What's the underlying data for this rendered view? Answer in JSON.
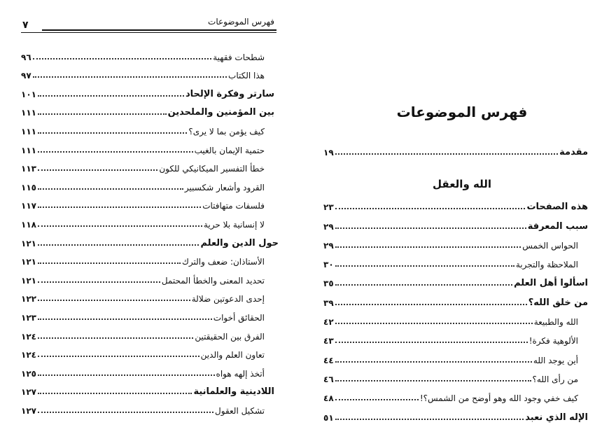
{
  "left_page": {
    "header_title": "فهرس الموضوعات",
    "page_number": "٧",
    "entries": [
      {
        "title": "شطحات فقهية",
        "page": "٩٦",
        "level": "sub"
      },
      {
        "title": "هذا الكتاب",
        "page": "٩٧",
        "level": "sub"
      },
      {
        "title": "سارتر وفكرة الإلحاد",
        "page": "١٠١",
        "level": "main"
      },
      {
        "title": "بين المؤمنين والملحدين",
        "page": "١١١",
        "level": "main"
      },
      {
        "title": "كيف يؤمن بما لا يرى؟",
        "page": "١١١",
        "level": "sub"
      },
      {
        "title": "حتمية الإيمان بالغيب",
        "page": "١١١",
        "level": "sub"
      },
      {
        "title": "خطأ التفسير الميكانيكي للكون",
        "page": "١١٣",
        "level": "sub"
      },
      {
        "title": "القرود وأشعار شكسبير",
        "page": "١١٥",
        "level": "sub"
      },
      {
        "title": "فلسفات متهافتات",
        "page": "١١٧",
        "level": "sub"
      },
      {
        "title": "لا إنسانية بلا حرية",
        "page": "١١٨",
        "level": "sub"
      },
      {
        "title": "حول الدين والعلم",
        "page": "١٢١",
        "level": "main2"
      },
      {
        "title": "الأستاذان: ضعف والترك",
        "page": "١٢١",
        "level": "sub"
      },
      {
        "title": "تحديد المعنى والخطأ المحتمل",
        "page": "١٢١",
        "level": "sub"
      },
      {
        "title": "إحدى الدعوتين ضلالة",
        "page": "١٢٢",
        "level": "sub"
      },
      {
        "title": "الحقائق أخوات",
        "page": "١٢٣",
        "level": "sub"
      },
      {
        "title": "الفرق بين الحقيقتين",
        "page": "١٢٤",
        "level": "sub"
      },
      {
        "title": "تعاون العلم والدين",
        "page": "١٢٤",
        "level": "sub"
      },
      {
        "title": "أتخذ إلهه هواه",
        "page": "١٢٥",
        "level": "sub"
      },
      {
        "title": "اللادينية والعلمانية",
        "page": "١٢٧",
        "level": "main"
      },
      {
        "title": "تشكيل العقول",
        "page": "١٢٧",
        "level": "sub"
      }
    ]
  },
  "right_page": {
    "title": "فهرس الموضوعات",
    "intro": {
      "title": "مقدمة",
      "page": "١٩"
    },
    "section_heading": "الله والعقل",
    "entries": [
      {
        "title": "هذه الصفحات",
        "page": "٢٣",
        "level": "main"
      },
      {
        "title": "سبب المعرفة",
        "page": "٢٩",
        "level": "main"
      },
      {
        "title": "الحواس الخمس",
        "page": "٢٩",
        "level": "sub"
      },
      {
        "title": "الملاحظة والتجربة",
        "page": "٣٠",
        "level": "sub"
      },
      {
        "title": "اسألوا أهل العلم",
        "page": "٣٥",
        "level": "main"
      },
      {
        "title": "من خلق الله؟",
        "page": "٣٩",
        "level": "main"
      },
      {
        "title": "الله والطبيعة",
        "page": "٤٢",
        "level": "sub"
      },
      {
        "title": "الألوهية فكرة!",
        "page": "٤٣",
        "level": "sub"
      },
      {
        "title": "أين يوجد الله",
        "page": "٤٤",
        "level": "sub"
      },
      {
        "title": "من رأى الله؟",
        "page": "٤٦",
        "level": "sub"
      },
      {
        "title": "كيف خفي وجود الله وهو أوضح من الشمس؟!",
        "page": "٤٨",
        "level": "sub"
      },
      {
        "title": "الإله الذي نعبد",
        "page": "٥١",
        "level": "main"
      }
    ]
  }
}
